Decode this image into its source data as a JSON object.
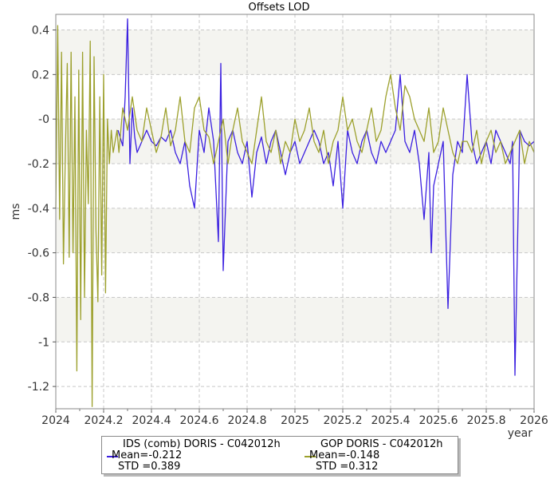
{
  "chart_data": {
    "type": "line",
    "title": "Offsets LOD",
    "xlabel": "year",
    "ylabel": "ms",
    "xlim": [
      2024.0,
      2026.0
    ],
    "ylim": [
      -1.3,
      0.47
    ],
    "grid": true,
    "legend_position": "bottom-center",
    "x_ticks": [
      "2024",
      "2024.2",
      "2024.4",
      "2024.6",
      "2024.8",
      "2025",
      "2025.2",
      "2025.4",
      "2025.6",
      "2025.8",
      "2026"
    ],
    "y_ticks": [
      "0.4",
      "0.2",
      "-0",
      "-0.2",
      "-0.4",
      "-0.6",
      "-0.8",
      "-1",
      "-1.2"
    ],
    "series": [
      {
        "name": "IDS (comb) DORIS - C042012h",
        "color": "#3a1fe0",
        "mean_label": "Mean=-0.212",
        "std_label": "STD =0.389",
        "x": [
          2024.26,
          2024.28,
          2024.29,
          2024.3,
          2024.31,
          2024.32,
          2024.33,
          2024.34,
          2024.36,
          2024.38,
          2024.4,
          2024.42,
          2024.44,
          2024.46,
          2024.48,
          2024.5,
          2024.52,
          2024.54,
          2024.56,
          2024.58,
          2024.6,
          2024.62,
          2024.64,
          2024.66,
          2024.68,
          2024.69,
          2024.7,
          2024.72,
          2024.74,
          2024.76,
          2024.78,
          2024.8,
          2024.82,
          2024.84,
          2024.86,
          2024.88,
          2024.9,
          2024.92,
          2024.94,
          2024.96,
          2024.98,
          2025.0,
          2025.02,
          2025.04,
          2025.06,
          2025.08,
          2025.1,
          2025.12,
          2025.14,
          2025.16,
          2025.18,
          2025.2,
          2025.22,
          2025.24,
          2025.26,
          2025.28,
          2025.3,
          2025.32,
          2025.34,
          2025.36,
          2025.38,
          2025.4,
          2025.42,
          2025.44,
          2025.46,
          2025.48,
          2025.5,
          2025.52,
          2025.54,
          2025.56,
          2025.57,
          2025.58,
          2025.6,
          2025.62,
          2025.64,
          2025.66,
          2025.68,
          2025.7,
          2025.72,
          2025.74,
          2025.76,
          2025.78,
          2025.8,
          2025.82,
          2025.84,
          2025.86,
          2025.88,
          2025.9,
          2025.91,
          2025.92,
          2025.94,
          2025.96,
          2025.98,
          2026.0
        ],
        "y": [
          -0.05,
          -0.12,
          0.1,
          0.45,
          -0.2,
          0.05,
          -0.08,
          -0.15,
          -0.1,
          -0.05,
          -0.1,
          -0.12,
          -0.08,
          -0.1,
          -0.05,
          -0.15,
          -0.2,
          -0.1,
          -0.3,
          -0.4,
          -0.05,
          -0.15,
          0.05,
          -0.1,
          -0.55,
          0.25,
          -0.68,
          -0.1,
          -0.05,
          -0.15,
          -0.2,
          -0.1,
          -0.35,
          -0.15,
          -0.08,
          -0.2,
          -0.1,
          -0.05,
          -0.15,
          -0.25,
          -0.15,
          -0.1,
          -0.2,
          -0.15,
          -0.1,
          -0.05,
          -0.1,
          -0.2,
          -0.15,
          -0.3,
          -0.1,
          -0.4,
          -0.05,
          -0.15,
          -0.2,
          -0.1,
          -0.05,
          -0.15,
          -0.2,
          -0.1,
          -0.15,
          -0.1,
          -0.05,
          0.2,
          -0.1,
          -0.15,
          -0.05,
          -0.2,
          -0.45,
          -0.15,
          -0.6,
          -0.3,
          -0.2,
          -0.1,
          -0.85,
          -0.25,
          -0.1,
          -0.15,
          0.2,
          -0.1,
          -0.2,
          -0.15,
          -0.1,
          -0.2,
          -0.05,
          -0.1,
          -0.15,
          -0.2,
          -0.1,
          -1.15,
          -0.05,
          -0.1,
          -0.12,
          -0.1
        ]
      },
      {
        "name": "GOP DORIS - C042012h",
        "color": "#9ca02c",
        "mean_label": "Mean=-0.148",
        "std_label": "STD =0.312",
        "x": [
          2024.0,
          2024.008,
          2024.016,
          2024.024,
          2024.032,
          2024.04,
          2024.048,
          2024.056,
          2024.064,
          2024.072,
          2024.08,
          2024.088,
          2024.096,
          2024.104,
          2024.112,
          2024.12,
          2024.128,
          2024.136,
          2024.144,
          2024.152,
          2024.16,
          2024.168,
          2024.176,
          2024.184,
          2024.192,
          2024.2,
          2024.208,
          2024.216,
          2024.224,
          2024.232,
          2024.24,
          2024.248,
          2024.256,
          2024.264,
          2024.28,
          2024.3,
          2024.32,
          2024.34,
          2024.36,
          2024.38,
          2024.4,
          2024.42,
          2024.44,
          2024.46,
          2024.48,
          2024.5,
          2024.52,
          2024.54,
          2024.56,
          2024.58,
          2024.6,
          2024.62,
          2024.64,
          2024.66,
          2024.68,
          2024.7,
          2024.72,
          2024.74,
          2024.76,
          2024.78,
          2024.8,
          2024.82,
          2024.84,
          2024.86,
          2024.88,
          2024.9,
          2024.92,
          2024.94,
          2024.96,
          2024.98,
          2025.0,
          2025.02,
          2025.04,
          2025.06,
          2025.08,
          2025.1,
          2025.12,
          2025.14,
          2025.16,
          2025.18,
          2025.2,
          2025.22,
          2025.24,
          2025.26,
          2025.28,
          2025.3,
          2025.32,
          2025.34,
          2025.36,
          2025.38,
          2025.4,
          2025.42,
          2025.44,
          2025.46,
          2025.48,
          2025.5,
          2025.52,
          2025.54,
          2025.56,
          2025.58,
          2025.6,
          2025.62,
          2025.64,
          2025.66,
          2025.68,
          2025.7,
          2025.72,
          2025.74,
          2025.76,
          2025.78,
          2025.8,
          2025.82,
          2025.84,
          2025.86,
          2025.88,
          2025.9,
          2025.92,
          2025.94,
          2025.96,
          2025.98,
          2026.0
        ],
        "y": [
          -0.4,
          0.42,
          -0.45,
          0.3,
          -0.65,
          -0.15,
          0.25,
          -0.62,
          0.3,
          -0.6,
          0.1,
          -1.13,
          0.22,
          -0.9,
          0.3,
          -0.8,
          -0.05,
          -0.38,
          0.35,
          -1.29,
          0.28,
          -0.5,
          -0.82,
          0.1,
          -0.7,
          0.2,
          -0.78,
          0.0,
          -0.2,
          -0.05,
          -0.15,
          -0.1,
          -0.05,
          -0.15,
          0.05,
          -0.05,
          0.1,
          -0.05,
          -0.1,
          0.05,
          -0.05,
          -0.15,
          -0.08,
          0.05,
          -0.12,
          -0.05,
          0.1,
          -0.1,
          -0.15,
          0.05,
          0.1,
          -0.05,
          -0.08,
          -0.2,
          -0.1,
          0.0,
          -0.2,
          -0.05,
          0.05,
          -0.1,
          -0.15,
          -0.2,
          -0.05,
          0.1,
          -0.1,
          -0.15,
          -0.05,
          -0.2,
          -0.1,
          -0.15,
          0.0,
          -0.1,
          -0.05,
          0.05,
          -0.1,
          -0.15,
          -0.05,
          -0.2,
          -0.1,
          -0.05,
          0.1,
          -0.05,
          0.0,
          -0.1,
          -0.15,
          -0.05,
          0.05,
          -0.1,
          -0.05,
          0.1,
          0.2,
          0.05,
          -0.05,
          0.15,
          0.1,
          0.0,
          -0.05,
          -0.1,
          0.05,
          -0.15,
          -0.1,
          0.05,
          -0.05,
          -0.15,
          -0.2,
          -0.1,
          -0.1,
          -0.15,
          -0.05,
          -0.2,
          -0.1,
          -0.05,
          -0.15,
          -0.1,
          -0.2,
          -0.15,
          -0.1,
          -0.05,
          -0.2,
          -0.1,
          -0.15
        ]
      }
    ]
  }
}
